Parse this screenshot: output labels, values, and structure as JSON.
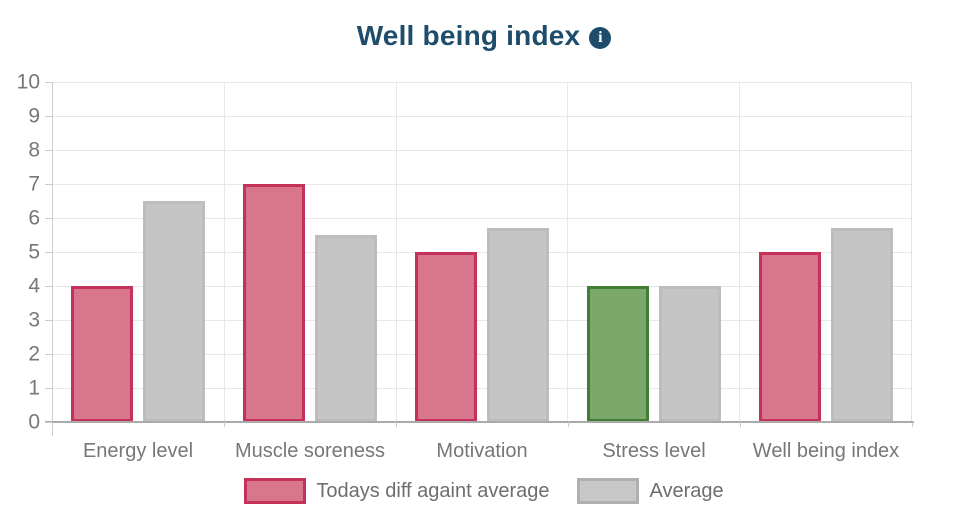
{
  "title": {
    "text": "Well being index",
    "info_glyph": "i"
  },
  "chart_data": {
    "type": "bar",
    "title": "Well being index",
    "categories": [
      "Energy level",
      "Muscle soreness",
      "Motivation",
      "Stress level",
      "Well being index"
    ],
    "series": [
      {
        "name": "Todays diff againt average",
        "values": [
          4,
          7,
          5,
          4,
          5
        ],
        "style": {
          "fill": "#d7768c",
          "border": "#c43159"
        },
        "overrides": [
          {
            "index": 3,
            "fill": "#7ca96a",
            "border": "#417d32"
          }
        ]
      },
      {
        "name": "Average",
        "values": [
          6.5,
          5.5,
          5.7,
          4,
          5.7
        ],
        "style": {
          "fill": "#c5c5c5",
          "border": "#bdbdbd"
        }
      }
    ],
    "ylim": [
      0,
      10
    ],
    "yticks": [
      0,
      1,
      2,
      3,
      4,
      5,
      6,
      7,
      8,
      9,
      10
    ],
    "grid": true,
    "legend_position": "bottom"
  },
  "legend": {
    "items": [
      {
        "label": "Todays diff againt average",
        "fill": "#d7768c",
        "border": "#c43159"
      },
      {
        "label": "Average",
        "fill": "#c8c8c8",
        "border": "#b0b0b0"
      }
    ]
  },
  "colors": {
    "title": "#1d4d6b",
    "axis_text": "#777777",
    "legend_text": "#6e6e6e",
    "gridline": "#e7e7e7",
    "axis_line": "#aaaaaa",
    "left_axis_line": "#cccccc",
    "background": "#ffffff"
  }
}
